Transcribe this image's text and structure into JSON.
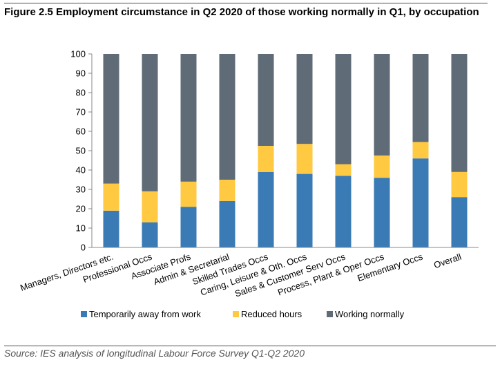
{
  "title": "Figure 2.5 Employment circumstance in Q2 2020 of those working normally in Q1, by occupation",
  "source": "Source: IES analysis of longitudinal Labour Force Survey Q1-Q2 2020",
  "chart_data": {
    "type": "bar",
    "stacked": true,
    "categories": [
      "Managers, Directors etc.",
      "Professional Occs",
      "Associate Profs",
      "Admin & Secretarial",
      "Skilled Trades Occs",
      "Caring, Leisure & Oth. Occs",
      "Sales & Customer Serv Occs",
      "Process, Plant & Oper Occs",
      "Elementary Occs",
      "Overall"
    ],
    "series": [
      {
        "name": "Temporarily away from work",
        "color": "#3a7bb5",
        "values": [
          19,
          13,
          21,
          24,
          39,
          38,
          37,
          36,
          46,
          26
        ]
      },
      {
        "name": "Reduced hours",
        "color": "#ffc941",
        "values": [
          14,
          16,
          13,
          11,
          13.5,
          15.5,
          6,
          11.5,
          8.5,
          13
        ]
      },
      {
        "name": "Working normally",
        "color": "#5f6b76",
        "values": [
          67,
          71,
          66,
          65,
          47.5,
          46.5,
          57,
          52.5,
          45.5,
          61
        ]
      }
    ],
    "ylim": [
      0,
      100
    ],
    "yticks": [
      0,
      10,
      20,
      30,
      40,
      50,
      60,
      70,
      80,
      90,
      100
    ],
    "legend_position": "bottom",
    "grid": false
  }
}
